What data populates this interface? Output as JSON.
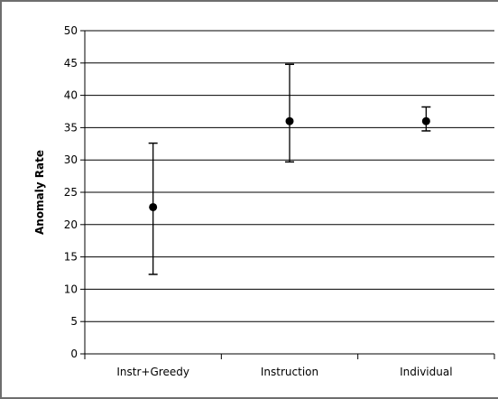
{
  "chart_data": {
    "type": "scatter",
    "title": "",
    "xlabel": "",
    "ylabel": "Anomaly Rate",
    "ylim": [
      0,
      50
    ],
    "y_ticks": [
      "0",
      "5",
      "10",
      "15",
      "20",
      "25",
      "30",
      "35",
      "40",
      "45",
      "50"
    ],
    "categories": [
      "Instr+Greedy",
      "Instruction",
      "Individual"
    ],
    "series": [
      {
        "values": [
          22.7,
          36.0,
          36.0
        ],
        "error_low": [
          12.3,
          29.7,
          34.5
        ],
        "error_high": [
          32.6,
          44.8,
          38.2
        ]
      }
    ],
    "grid": true,
    "legend": "none",
    "colors": {
      "marker": "#000000",
      "gridline": "#000000",
      "frame": "#6e6e6e"
    }
  }
}
